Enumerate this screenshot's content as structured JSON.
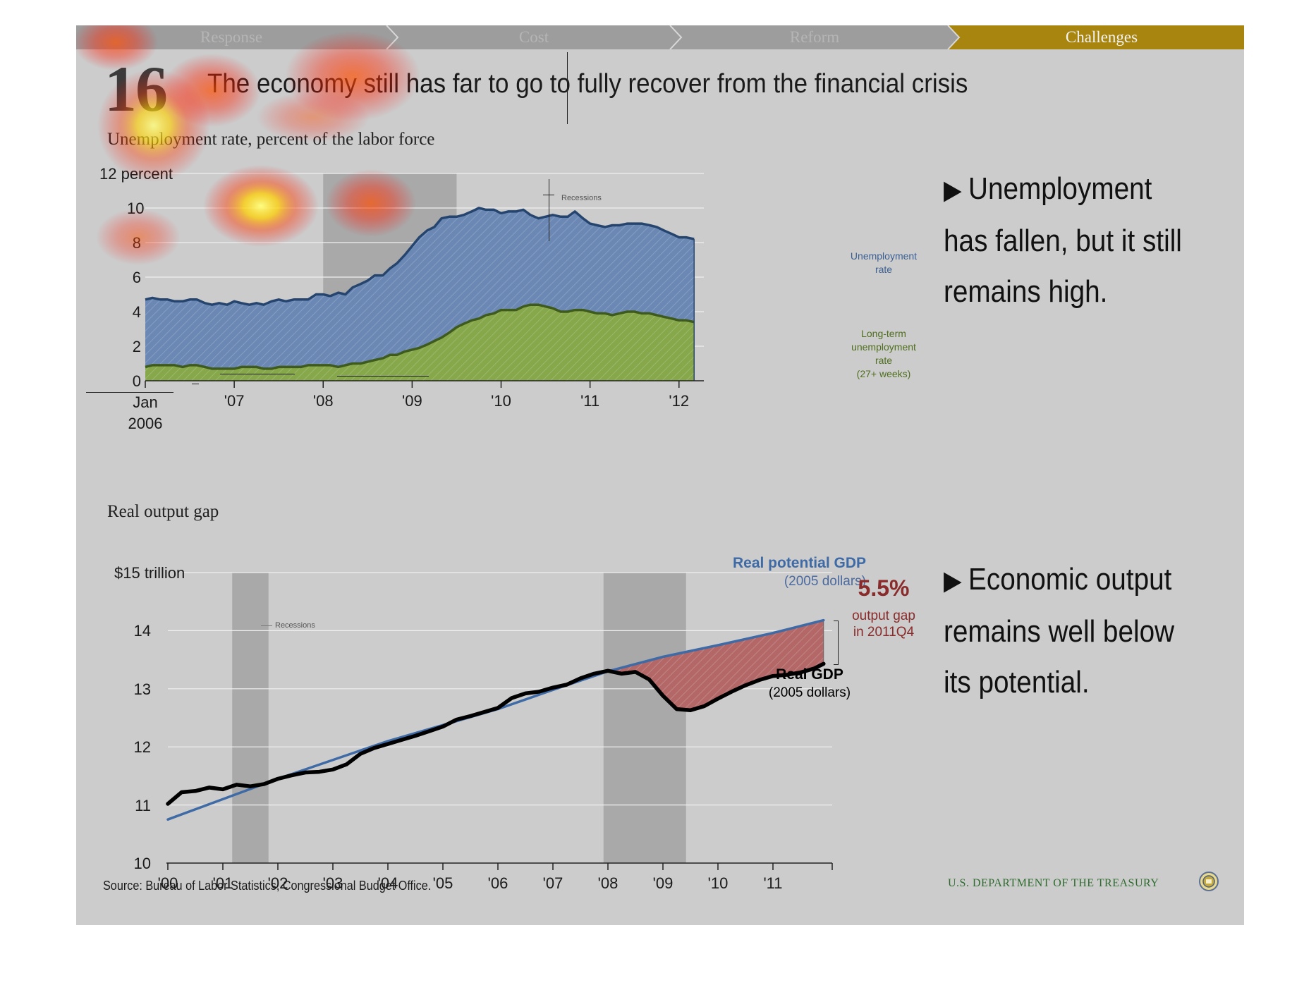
{
  "nav": {
    "tabs": [
      {
        "label": "Response",
        "active": false
      },
      {
        "label": "Cost",
        "active": false
      },
      {
        "label": "Reform",
        "active": false
      },
      {
        "label": "Challenges",
        "active": true
      }
    ],
    "active_color": "#a8850e",
    "inactive_color": "#9d9d9d"
  },
  "slide": {
    "number": "16",
    "title": "The economy still has far to go to fully recover from the financial crisis"
  },
  "bullets": [
    {
      "marker": "▶",
      "lines": [
        "Unemployment",
        "has fallen, but it still",
        "remains high."
      ]
    },
    {
      "marker": "▶",
      "lines": [
        "Economic output",
        "remains well below",
        "its potential."
      ]
    }
  ],
  "footer": {
    "source": "Source: Bureau of Labor Statistics, Congressional Budget Office.",
    "department": "U.S. DEPARTMENT OF THE TREASURY"
  },
  "chart_data": [
    {
      "type": "area",
      "title": "Unemployment rate, percent of the labor force",
      "ylabel": "12 percent",
      "ylim": [
        0,
        12
      ],
      "yticks": [
        "12 percent",
        "10",
        "8",
        "6",
        "4",
        "2",
        "0"
      ],
      "xticks": [
        "Jan 2006",
        "'07",
        "'08",
        "'09",
        "'10",
        "'11",
        "'12"
      ],
      "x_range": [
        2006.0,
        2012.2
      ],
      "recession": {
        "label": "Recessions",
        "start": 2008.0,
        "end": 2009.5
      },
      "grid": true,
      "series": [
        {
          "name": "Unemployment rate",
          "color": "#6b88b4",
          "line_color": "#25456f",
          "points": [
            [
              2006.0,
              4.7
            ],
            [
              2006.08,
              4.8
            ],
            [
              2006.17,
              4.7
            ],
            [
              2006.25,
              4.7
            ],
            [
              2006.33,
              4.6
            ],
            [
              2006.42,
              4.6
            ],
            [
              2006.5,
              4.7
            ],
            [
              2006.58,
              4.7
            ],
            [
              2006.67,
              4.5
            ],
            [
              2006.75,
              4.4
            ],
            [
              2006.83,
              4.5
            ],
            [
              2006.92,
              4.4
            ],
            [
              2007.0,
              4.6
            ],
            [
              2007.08,
              4.5
            ],
            [
              2007.17,
              4.4
            ],
            [
              2007.25,
              4.5
            ],
            [
              2007.33,
              4.4
            ],
            [
              2007.42,
              4.6
            ],
            [
              2007.5,
              4.7
            ],
            [
              2007.58,
              4.6
            ],
            [
              2007.67,
              4.7
            ],
            [
              2007.75,
              4.7
            ],
            [
              2007.83,
              4.7
            ],
            [
              2007.92,
              5.0
            ],
            [
              2008.0,
              5.0
            ],
            [
              2008.08,
              4.9
            ],
            [
              2008.17,
              5.1
            ],
            [
              2008.25,
              5.0
            ],
            [
              2008.33,
              5.4
            ],
            [
              2008.42,
              5.6
            ],
            [
              2008.5,
              5.8
            ],
            [
              2008.58,
              6.1
            ],
            [
              2008.67,
              6.1
            ],
            [
              2008.75,
              6.5
            ],
            [
              2008.83,
              6.8
            ],
            [
              2008.92,
              7.3
            ],
            [
              2009.0,
              7.8
            ],
            [
              2009.08,
              8.3
            ],
            [
              2009.17,
              8.7
            ],
            [
              2009.25,
              8.9
            ],
            [
              2009.33,
              9.4
            ],
            [
              2009.42,
              9.5
            ],
            [
              2009.5,
              9.5
            ],
            [
              2009.58,
              9.6
            ],
            [
              2009.67,
              9.8
            ],
            [
              2009.75,
              10.0
            ],
            [
              2009.83,
              9.9
            ],
            [
              2009.92,
              9.9
            ],
            [
              2010.0,
              9.7
            ],
            [
              2010.08,
              9.8
            ],
            [
              2010.17,
              9.8
            ],
            [
              2010.25,
              9.9
            ],
            [
              2010.33,
              9.6
            ],
            [
              2010.42,
              9.4
            ],
            [
              2010.5,
              9.5
            ],
            [
              2010.58,
              9.6
            ],
            [
              2010.67,
              9.5
            ],
            [
              2010.75,
              9.5
            ],
            [
              2010.83,
              9.8
            ],
            [
              2010.92,
              9.4
            ],
            [
              2011.0,
              9.1
            ],
            [
              2011.08,
              9.0
            ],
            [
              2011.17,
              8.9
            ],
            [
              2011.25,
              9.0
            ],
            [
              2011.33,
              9.0
            ],
            [
              2011.42,
              9.1
            ],
            [
              2011.5,
              9.1
            ],
            [
              2011.58,
              9.1
            ],
            [
              2011.67,
              9.0
            ],
            [
              2011.75,
              8.9
            ],
            [
              2011.83,
              8.7
            ],
            [
              2011.92,
              8.5
            ],
            [
              2012.0,
              8.3
            ],
            [
              2012.08,
              8.3
            ],
            [
              2012.17,
              8.2
            ]
          ],
          "label": [
            "Unemployment",
            "rate"
          ],
          "label_color": "#3b5f93"
        },
        {
          "name": "Long-term unemployment rate (27+ weeks)",
          "color": "#86a74a",
          "line_color": "#3e5a1c",
          "points": [
            [
              2006.0,
              0.8
            ],
            [
              2006.08,
              0.9
            ],
            [
              2006.17,
              0.9
            ],
            [
              2006.25,
              0.9
            ],
            [
              2006.33,
              0.9
            ],
            [
              2006.42,
              0.8
            ],
            [
              2006.5,
              0.9
            ],
            [
              2006.58,
              0.9
            ],
            [
              2006.67,
              0.8
            ],
            [
              2006.75,
              0.7
            ],
            [
              2006.83,
              0.7
            ],
            [
              2006.92,
              0.7
            ],
            [
              2007.0,
              0.7
            ],
            [
              2007.08,
              0.8
            ],
            [
              2007.17,
              0.8
            ],
            [
              2007.25,
              0.8
            ],
            [
              2007.33,
              0.7
            ],
            [
              2007.42,
              0.7
            ],
            [
              2007.5,
              0.8
            ],
            [
              2007.58,
              0.8
            ],
            [
              2007.67,
              0.8
            ],
            [
              2007.75,
              0.8
            ],
            [
              2007.83,
              0.9
            ],
            [
              2007.92,
              0.9
            ],
            [
              2008.0,
              0.9
            ],
            [
              2008.08,
              0.9
            ],
            [
              2008.17,
              0.8
            ],
            [
              2008.25,
              0.9
            ],
            [
              2008.33,
              1.0
            ],
            [
              2008.42,
              1.0
            ],
            [
              2008.5,
              1.1
            ],
            [
              2008.58,
              1.2
            ],
            [
              2008.67,
              1.3
            ],
            [
              2008.75,
              1.5
            ],
            [
              2008.83,
              1.5
            ],
            [
              2008.92,
              1.7
            ],
            [
              2009.0,
              1.8
            ],
            [
              2009.08,
              1.9
            ],
            [
              2009.17,
              2.1
            ],
            [
              2009.25,
              2.3
            ],
            [
              2009.33,
              2.5
            ],
            [
              2009.42,
              2.8
            ],
            [
              2009.5,
              3.1
            ],
            [
              2009.58,
              3.3
            ],
            [
              2009.67,
              3.5
            ],
            [
              2009.75,
              3.6
            ],
            [
              2009.83,
              3.8
            ],
            [
              2009.92,
              3.9
            ],
            [
              2010.0,
              4.1
            ],
            [
              2010.08,
              4.1
            ],
            [
              2010.17,
              4.1
            ],
            [
              2010.25,
              4.3
            ],
            [
              2010.33,
              4.4
            ],
            [
              2010.42,
              4.4
            ],
            [
              2010.5,
              4.3
            ],
            [
              2010.58,
              4.2
            ],
            [
              2010.67,
              4.0
            ],
            [
              2010.75,
              4.0
            ],
            [
              2010.83,
              4.1
            ],
            [
              2010.92,
              4.1
            ],
            [
              2011.0,
              4.0
            ],
            [
              2011.08,
              3.9
            ],
            [
              2011.17,
              3.9
            ],
            [
              2011.25,
              3.8
            ],
            [
              2011.33,
              3.9
            ],
            [
              2011.42,
              4.0
            ],
            [
              2011.5,
              4.0
            ],
            [
              2011.58,
              3.9
            ],
            [
              2011.67,
              3.9
            ],
            [
              2011.75,
              3.8
            ],
            [
              2011.83,
              3.7
            ],
            [
              2011.92,
              3.6
            ],
            [
              2012.0,
              3.5
            ],
            [
              2012.08,
              3.5
            ],
            [
              2012.17,
              3.4
            ]
          ],
          "label": [
            "Long-term",
            "unemployment",
            "rate",
            "(27+ weeks)"
          ],
          "label_color": "#4f6e1f"
        }
      ]
    },
    {
      "type": "line",
      "title": "Real output gap",
      "ylabel": "$15 trillion",
      "ylim": [
        10,
        15
      ],
      "yticks": [
        "$15 trillion",
        "14",
        "13",
        "12",
        "11",
        "10"
      ],
      "xticks": [
        "'00",
        "'01",
        "'02",
        "'03",
        "'04",
        "'05",
        "'06",
        "'07",
        "'08",
        "'09",
        "'10",
        "'11"
      ],
      "x_range": [
        2000.0,
        2012.0
      ],
      "recessions": [
        {
          "label": "Recessions",
          "start": 2001.17,
          "end": 2001.83
        },
        {
          "label": "",
          "start": 2007.92,
          "end": 2009.42
        }
      ],
      "grid": true,
      "series": [
        {
          "name": "Real potential GDP",
          "label": [
            "Real potential GDP",
            "(2005 dollars)"
          ],
          "color": "#3e6aa6",
          "points": [
            [
              2000.0,
              10.75
            ],
            [
              2002.0,
              11.45
            ],
            [
              2004.0,
              12.1
            ],
            [
              2006.0,
              12.65
            ],
            [
              2007.0,
              12.98
            ],
            [
              2008.0,
              13.3
            ],
            [
              2009.0,
              13.55
            ],
            [
              2010.0,
              13.75
            ],
            [
              2011.0,
              13.96
            ],
            [
              2011.92,
              14.18
            ]
          ]
        },
        {
          "name": "Real GDP",
          "label": [
            "Real GDP",
            "(2005 dollars)"
          ],
          "color": "#000000",
          "points": [
            [
              2000.0,
              11.02
            ],
            [
              2000.25,
              11.22
            ],
            [
              2000.5,
              11.24
            ],
            [
              2000.75,
              11.3
            ],
            [
              2001.0,
              11.27
            ],
            [
              2001.25,
              11.35
            ],
            [
              2001.5,
              11.32
            ],
            [
              2001.75,
              11.36
            ],
            [
              2002.0,
              11.45
            ],
            [
              2002.25,
              11.51
            ],
            [
              2002.5,
              11.56
            ],
            [
              2002.75,
              11.57
            ],
            [
              2003.0,
              11.61
            ],
            [
              2003.25,
              11.7
            ],
            [
              2003.5,
              11.88
            ],
            [
              2003.75,
              11.98
            ],
            [
              2004.0,
              12.05
            ],
            [
              2004.25,
              12.12
            ],
            [
              2004.5,
              12.19
            ],
            [
              2004.75,
              12.27
            ],
            [
              2005.0,
              12.35
            ],
            [
              2005.25,
              12.47
            ],
            [
              2005.5,
              12.53
            ],
            [
              2005.75,
              12.6
            ],
            [
              2006.0,
              12.67
            ],
            [
              2006.25,
              12.84
            ],
            [
              2006.5,
              12.92
            ],
            [
              2006.75,
              12.95
            ],
            [
              2007.0,
              13.02
            ],
            [
              2007.25,
              13.07
            ],
            [
              2007.5,
              13.18
            ],
            [
              2007.75,
              13.26
            ],
            [
              2008.0,
              13.31
            ],
            [
              2008.25,
              13.26
            ],
            [
              2008.5,
              13.29
            ],
            [
              2008.75,
              13.16
            ],
            [
              2009.0,
              12.88
            ],
            [
              2009.25,
              12.65
            ],
            [
              2009.5,
              12.63
            ],
            [
              2009.75,
              12.7
            ],
            [
              2010.0,
              12.83
            ],
            [
              2010.25,
              12.95
            ],
            [
              2010.5,
              13.06
            ],
            [
              2010.75,
              13.15
            ],
            [
              2011.0,
              13.22
            ],
            [
              2011.25,
              13.24
            ],
            [
              2011.5,
              13.28
            ],
            [
              2011.75,
              13.35
            ],
            [
              2011.92,
              13.43
            ]
          ]
        }
      ],
      "gap_annotation": {
        "value": "5.5%",
        "lines": [
          "output gap",
          "in 2011Q4"
        ],
        "color": "#8a2a2a",
        "fill": "#b36767"
      }
    }
  ]
}
